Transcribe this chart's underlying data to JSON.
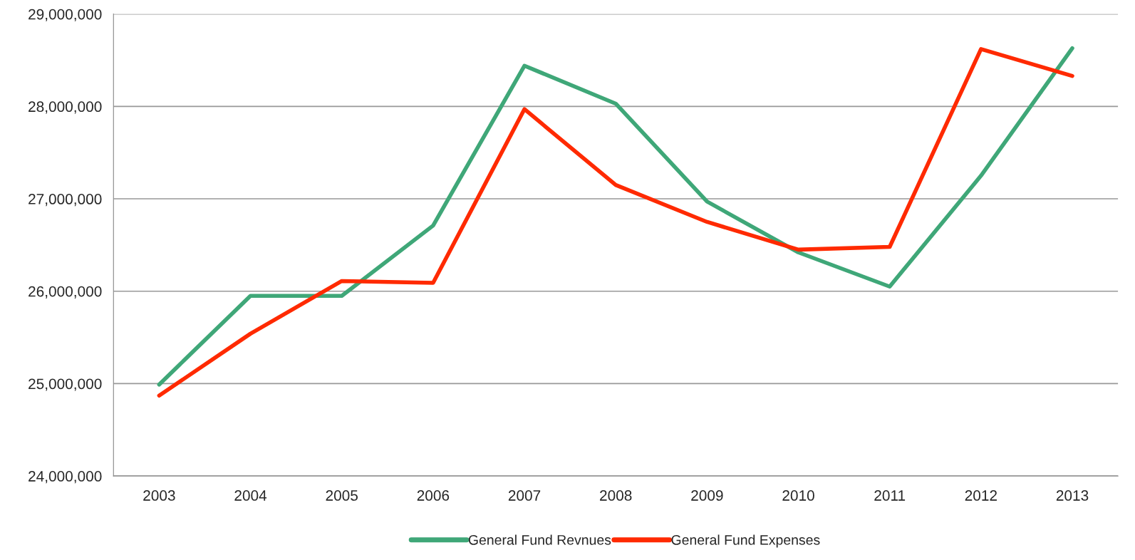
{
  "chart_data": {
    "type": "line",
    "categories": [
      "2003",
      "2004",
      "2005",
      "2006",
      "2007",
      "2008",
      "2009",
      "2010",
      "2011",
      "2012",
      "2013"
    ],
    "series": [
      {
        "name": "General Fund Revnues",
        "color": "#3fa778",
        "values": [
          24990000,
          25950000,
          25950000,
          26710000,
          28440000,
          28030000,
          26970000,
          26420000,
          26050000,
          27250000,
          28630000
        ]
      },
      {
        "name": "General Fund Expenses",
        "color": "#ff2a00",
        "values": [
          24870000,
          25540000,
          26110000,
          26090000,
          27970000,
          27150000,
          26750000,
          26450000,
          26480000,
          28620000,
          28330000
        ]
      }
    ],
    "ylim": [
      24000000,
      29000000
    ],
    "yticks": [
      {
        "value": 24000000,
        "label": "24,000,000"
      },
      {
        "value": 25000000,
        "label": "25,000,000"
      },
      {
        "value": 26000000,
        "label": "26,000,000"
      },
      {
        "value": 27000000,
        "label": "27,000,000"
      },
      {
        "value": 28000000,
        "label": "28,000,000"
      },
      {
        "value": 29000000,
        "label": "29,000,000"
      }
    ],
    "grid": "y",
    "legend": "bottom",
    "marker": "none",
    "line_style": "solid"
  }
}
